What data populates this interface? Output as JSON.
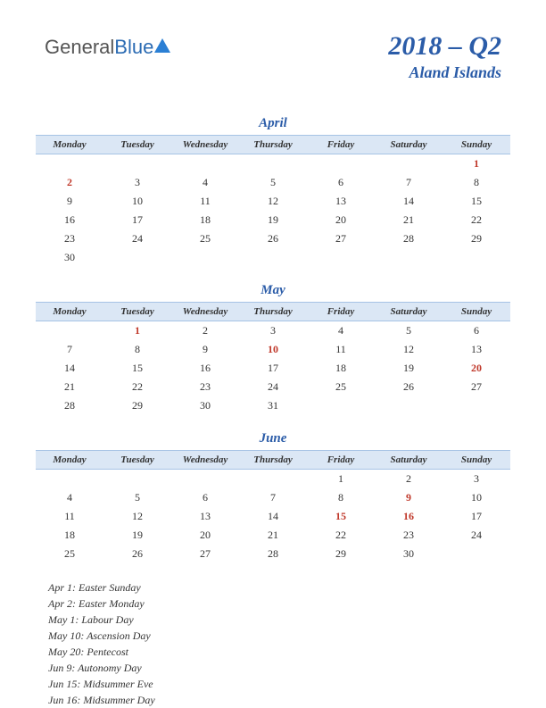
{
  "logo": {
    "text1": "General",
    "text2": "Blue"
  },
  "header": {
    "title": "2018 – Q2",
    "subtitle": "Aland Islands"
  },
  "dayHeaders": [
    "Monday",
    "Tuesday",
    "Wednesday",
    "Thursday",
    "Friday",
    "Saturday",
    "Sunday"
  ],
  "colors": {
    "brand": "#2b5ca8",
    "headerBg": "#dbe7f5",
    "headerBorder": "#a6c3e5",
    "holiday": "#c0392b",
    "text": "#333333",
    "background": "#ffffff"
  },
  "months": [
    {
      "name": "April",
      "weeks": [
        [
          null,
          null,
          null,
          null,
          null,
          null,
          {
            "d": 1,
            "h": true
          }
        ],
        [
          {
            "d": 2,
            "h": true
          },
          {
            "d": 3
          },
          {
            "d": 4
          },
          {
            "d": 5
          },
          {
            "d": 6
          },
          {
            "d": 7
          },
          {
            "d": 8
          }
        ],
        [
          {
            "d": 9
          },
          {
            "d": 10
          },
          {
            "d": 11
          },
          {
            "d": 12
          },
          {
            "d": 13
          },
          {
            "d": 14
          },
          {
            "d": 15
          }
        ],
        [
          {
            "d": 16
          },
          {
            "d": 17
          },
          {
            "d": 18
          },
          {
            "d": 19
          },
          {
            "d": 20
          },
          {
            "d": 21
          },
          {
            "d": 22
          }
        ],
        [
          {
            "d": 23
          },
          {
            "d": 24
          },
          {
            "d": 25
          },
          {
            "d": 26
          },
          {
            "d": 27
          },
          {
            "d": 28
          },
          {
            "d": 29
          }
        ],
        [
          {
            "d": 30
          },
          null,
          null,
          null,
          null,
          null,
          null
        ]
      ]
    },
    {
      "name": "May",
      "weeks": [
        [
          null,
          {
            "d": 1,
            "h": true
          },
          {
            "d": 2
          },
          {
            "d": 3
          },
          {
            "d": 4
          },
          {
            "d": 5
          },
          {
            "d": 6
          }
        ],
        [
          {
            "d": 7
          },
          {
            "d": 8
          },
          {
            "d": 9
          },
          {
            "d": 10,
            "h": true
          },
          {
            "d": 11
          },
          {
            "d": 12
          },
          {
            "d": 13
          }
        ],
        [
          {
            "d": 14
          },
          {
            "d": 15
          },
          {
            "d": 16
          },
          {
            "d": 17
          },
          {
            "d": 18
          },
          {
            "d": 19
          },
          {
            "d": 20,
            "h": true
          }
        ],
        [
          {
            "d": 21
          },
          {
            "d": 22
          },
          {
            "d": 23
          },
          {
            "d": 24
          },
          {
            "d": 25
          },
          {
            "d": 26
          },
          {
            "d": 27
          }
        ],
        [
          {
            "d": 28
          },
          {
            "d": 29
          },
          {
            "d": 30
          },
          {
            "d": 31
          },
          null,
          null,
          null
        ]
      ]
    },
    {
      "name": "June",
      "weeks": [
        [
          null,
          null,
          null,
          null,
          {
            "d": 1
          },
          {
            "d": 2
          },
          {
            "d": 3
          }
        ],
        [
          {
            "d": 4
          },
          {
            "d": 5
          },
          {
            "d": 6
          },
          {
            "d": 7
          },
          {
            "d": 8
          },
          {
            "d": 9,
            "h": true
          },
          {
            "d": 10
          }
        ],
        [
          {
            "d": 11
          },
          {
            "d": 12
          },
          {
            "d": 13
          },
          {
            "d": 14
          },
          {
            "d": 15,
            "h": true
          },
          {
            "d": 16,
            "h": true
          },
          {
            "d": 17
          }
        ],
        [
          {
            "d": 18
          },
          {
            "d": 19
          },
          {
            "d": 20
          },
          {
            "d": 21
          },
          {
            "d": 22
          },
          {
            "d": 23
          },
          {
            "d": 24
          }
        ],
        [
          {
            "d": 25
          },
          {
            "d": 26
          },
          {
            "d": 27
          },
          {
            "d": 28
          },
          {
            "d": 29
          },
          {
            "d": 30
          },
          null
        ]
      ]
    }
  ],
  "holidays": [
    "Apr 1: Easter Sunday",
    "Apr 2: Easter Monday",
    "May 1: Labour Day",
    "May 10: Ascension Day",
    "May 20: Pentecost",
    "Jun 9: Autonomy Day",
    "Jun 15: Midsummer Eve",
    "Jun 16: Midsummer Day"
  ]
}
